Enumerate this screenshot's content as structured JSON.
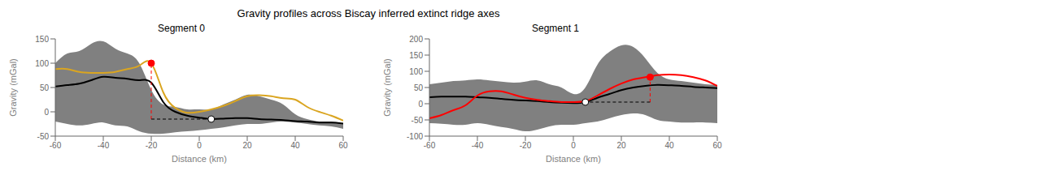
{
  "title": "Gravity profiles across Biscay inferred extinct ridge axes",
  "chart_data": [
    {
      "type": "line",
      "title": "Segment 0",
      "x_label": "Distance (km)",
      "y_label": "Gravity (mGal)",
      "xlim": [
        -60,
        60
      ],
      "xticks": [
        -60,
        -40,
        -20,
        0,
        20,
        40,
        60
      ],
      "ylim": [
        -50,
        150
      ],
      "yticks": [
        -50,
        0,
        50,
        100,
        150
      ],
      "grid": false,
      "x": [
        -60,
        -55,
        -50,
        -45,
        -40,
        -35,
        -30,
        -25,
        -20,
        -15,
        -10,
        -5,
        0,
        5,
        10,
        15,
        20,
        25,
        30,
        35,
        40,
        45,
        50,
        55,
        60
      ],
      "series": [
        {
          "type": "area",
          "color": "#808080",
          "upper": [
            100,
            120,
            125,
            140,
            145,
            130,
            120,
            100,
            45,
            15,
            10,
            5,
            5,
            5,
            15,
            25,
            35,
            32,
            25,
            15,
            -5,
            -15,
            -20,
            -20,
            -25
          ],
          "lower": [
            -20,
            -25,
            -28,
            -25,
            -22,
            -28,
            -30,
            -40,
            -45,
            -45,
            -42,
            -40,
            -38,
            -35,
            -32,
            -28,
            -25,
            -25,
            -22,
            -20,
            -22,
            -25,
            -28,
            -30,
            -35
          ]
        },
        {
          "type": "line",
          "color": "#000000",
          "values": [
            52,
            55,
            58,
            65,
            72,
            70,
            68,
            65,
            60,
            20,
            0,
            -8,
            -12,
            -15,
            -14,
            -13,
            -13,
            -15,
            -16,
            -17,
            -19,
            -20,
            -22,
            -22,
            -24
          ]
        },
        {
          "type": "line",
          "color": "#DAA520",
          "values": [
            88,
            88,
            82,
            80,
            80,
            82,
            88,
            95,
            100,
            40,
            8,
            -2,
            0,
            5,
            12,
            22,
            32,
            34,
            32,
            28,
            25,
            10,
            0,
            -8,
            -18
          ]
        }
      ],
      "lines": [
        {
          "x": [
            -20,
            -20
          ],
          "y": [
            -15,
            100
          ],
          "color": "red",
          "line_style": "dashed"
        },
        {
          "x": [
            -20,
            5
          ],
          "y": [
            -15,
            -15
          ],
          "color": "black",
          "line_style": "dashed"
        }
      ],
      "points": [
        {
          "x": -20,
          "y": 100,
          "color": "red",
          "edge_color": "red"
        },
        {
          "x": 5,
          "y": -15,
          "color": "white",
          "edge_color": "black"
        }
      ]
    },
    {
      "type": "line",
      "title": "Segment 1",
      "x_label": "Distance (km)",
      "y_label": "Gravity (mGal)",
      "xlim": [
        -60,
        60
      ],
      "xticks": [
        -60,
        -40,
        -20,
        0,
        20,
        40,
        60
      ],
      "ylim": [
        -100,
        200
      ],
      "yticks": [
        -100,
        -50,
        0,
        50,
        100,
        150,
        200
      ],
      "grid": false,
      "x": [
        -60,
        -55,
        -50,
        -45,
        -40,
        -35,
        -30,
        -25,
        -20,
        -15,
        -10,
        -5,
        0,
        5,
        10,
        15,
        20,
        25,
        30,
        35,
        40,
        45,
        50,
        55,
        60
      ],
      "series": [
        {
          "type": "area",
          "color": "#808080",
          "upper": [
            60,
            65,
            70,
            72,
            75,
            72,
            68,
            65,
            68,
            72,
            60,
            50,
            30,
            50,
            120,
            160,
            180,
            175,
            140,
            95,
            75,
            70,
            65,
            60,
            58
          ],
          "lower": [
            -60,
            -62,
            -65,
            -65,
            -60,
            -65,
            -72,
            -78,
            -85,
            -80,
            -70,
            -65,
            -65,
            -60,
            -55,
            -45,
            -35,
            -30,
            -35,
            -50,
            -55,
            -58,
            -58,
            -58,
            -60
          ]
        },
        {
          "type": "line",
          "color": "#000000",
          "values": [
            20,
            22,
            22,
            22,
            20,
            18,
            15,
            12,
            10,
            8,
            5,
            3,
            2,
            5,
            18,
            30,
            42,
            50,
            55,
            58,
            57,
            55,
            52,
            50,
            48
          ]
        },
        {
          "type": "line",
          "color": "#FF0000",
          "values": [
            -45,
            -35,
            -20,
            -5,
            25,
            38,
            38,
            28,
            18,
            12,
            8,
            5,
            5,
            8,
            25,
            45,
            62,
            75,
            82,
            88,
            90,
            88,
            82,
            72,
            55
          ]
        }
      ],
      "lines": [
        {
          "x": [
            32,
            32
          ],
          "y": [
            5,
            82
          ],
          "color": "red",
          "line_style": "dashed"
        },
        {
          "x": [
            32,
            5
          ],
          "y": [
            5,
            5
          ],
          "color": "black",
          "line_style": "dashed"
        }
      ],
      "points": [
        {
          "x": 32,
          "y": 82,
          "color": "red",
          "edge_color": "red"
        },
        {
          "x": 5,
          "y": 5,
          "color": "white",
          "edge_color": "black"
        }
      ]
    }
  ]
}
